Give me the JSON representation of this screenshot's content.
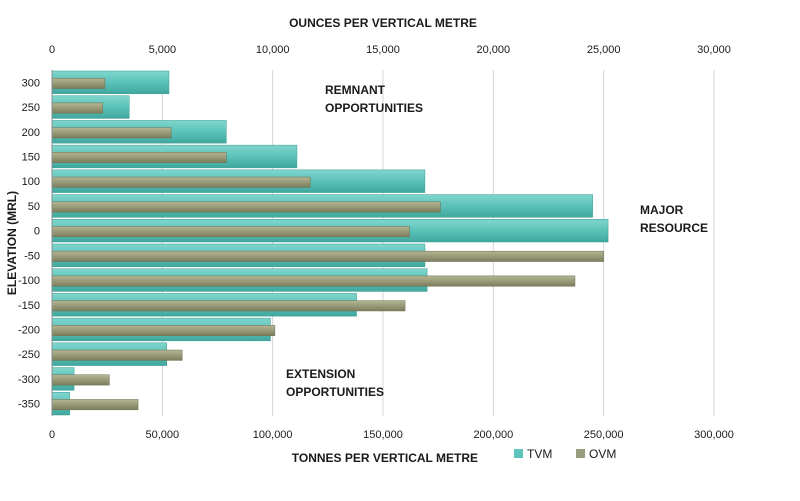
{
  "chart_data": {
    "type": "bar",
    "orientation": "horizontal",
    "ylabel": "ELEVATION (MRL)",
    "categories": [
      "300",
      "250",
      "200",
      "150",
      "100",
      "50",
      "0",
      "-50",
      "-100",
      "-150",
      "-200",
      "-250",
      "-300",
      "-350"
    ],
    "x_bottom": {
      "label": "TONNES PER VERTICAL METRE",
      "range": [
        0,
        300000
      ],
      "ticks": [
        "0",
        "50,000",
        "100,000",
        "150,000",
        "200,000",
        "250,000",
        "300,000"
      ]
    },
    "x_top": {
      "label": "OUNCES PER VERTICAL METRE",
      "range": [
        0,
        30000
      ],
      "ticks": [
        "0",
        "5,000",
        "10,000",
        "15,000",
        "20,000",
        "25,000",
        "30,000"
      ]
    },
    "series": [
      {
        "name": "TVM",
        "axis": "bottom",
        "color": "#5fc4bb",
        "values": [
          53000,
          35000,
          79000,
          111000,
          169000,
          245000,
          252000,
          169000,
          170000,
          138000,
          99000,
          52000,
          10000,
          8000
        ]
      },
      {
        "name": "OVM",
        "axis": "top",
        "color": "#9a9d7b",
        "values": [
          2400,
          2300,
          5400,
          7900,
          11700,
          17600,
          16200,
          25000,
          23700,
          16000,
          10100,
          5900,
          2600,
          3900
        ]
      }
    ],
    "annotations": [
      {
        "text": [
          "REMNANT",
          "OPPORTUNITIES"
        ]
      },
      {
        "text": [
          "MAJOR",
          "RESOURCE"
        ]
      },
      {
        "text": [
          "EXTENSION",
          "OPPORTUNITIES"
        ]
      }
    ],
    "grid": true,
    "legend_position": "bottom-right"
  }
}
